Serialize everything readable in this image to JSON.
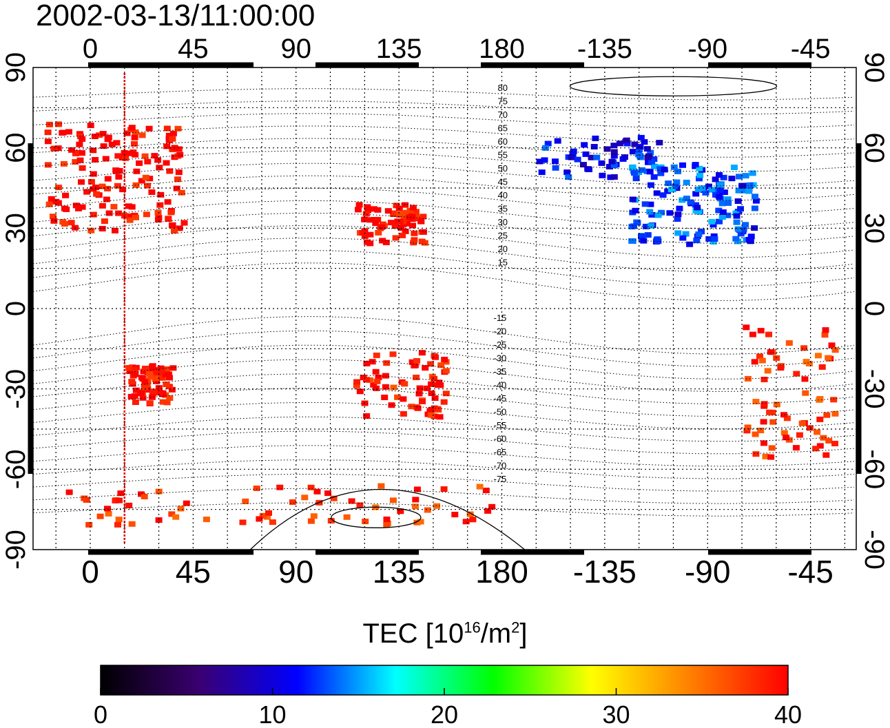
{
  "title": "2002-03-13/11:00:00",
  "colorbar": {
    "label_main": "TEC  [10",
    "label_exp": "16",
    "label_unit": "/m",
    "label_exp2": "2",
    "label_close": "]",
    "ticks": [
      "0",
      "10",
      "20",
      "30",
      "40"
    ],
    "range": [
      0,
      40
    ],
    "colors": [
      "#000000",
      "#3a0070",
      "#0000ff",
      "#00ffff",
      "#00ff00",
      "#ffff00",
      "#ff8000",
      "#ff0000"
    ]
  },
  "map": {
    "x_tick_labels": [
      "0",
      "45",
      "90",
      "135",
      "180",
      "-135",
      "-90",
      "-45"
    ],
    "y_tick_labels": [
      "90",
      "60",
      "30",
      "0",
      "-30",
      "-60",
      "-90"
    ],
    "contour_labels_north": [
      "80",
      "75",
      "70",
      "65",
      "60",
      "55",
      "50",
      "45",
      "40",
      "35",
      "30",
      "25",
      "20",
      "15"
    ],
    "contour_labels_south": [
      "-15",
      "-20",
      "-25",
      "-30",
      "-35",
      "-40",
      "-45",
      "-50",
      "-55",
      "-60",
      "-65",
      "-70",
      "-75"
    ],
    "terminator_longitude": 15,
    "tec_regions": [
      {
        "name": "europe",
        "lon": [
          -20,
          40
        ],
        "lat": [
          30,
          70
        ],
        "value": 40
      },
      {
        "name": "japan-china",
        "lon": [
          115,
          145
        ],
        "lat": [
          25,
          40
        ],
        "value": 40
      },
      {
        "name": "north-america",
        "lon": [
          -125,
          -70
        ],
        "lat": [
          25,
          55
        ],
        "value": 13
      },
      {
        "name": "alaska-canada",
        "lon": [
          -165,
          -110
        ],
        "lat": [
          50,
          65
        ],
        "value": 11
      },
      {
        "name": "south-america",
        "lon": [
          -75,
          -35
        ],
        "lat": [
          -55,
          -5
        ],
        "value": 38
      },
      {
        "name": "australia",
        "lon": [
          115,
          155
        ],
        "lat": [
          -40,
          -15
        ],
        "value": 39
      },
      {
        "name": "southern-africa",
        "lon": [
          15,
          35
        ],
        "lat": [
          -35,
          -20
        ],
        "value": 40
      },
      {
        "name": "antarctica",
        "lon": [
          -20,
          180
        ],
        "lat": [
          -80,
          -65
        ],
        "value": 38
      }
    ]
  }
}
